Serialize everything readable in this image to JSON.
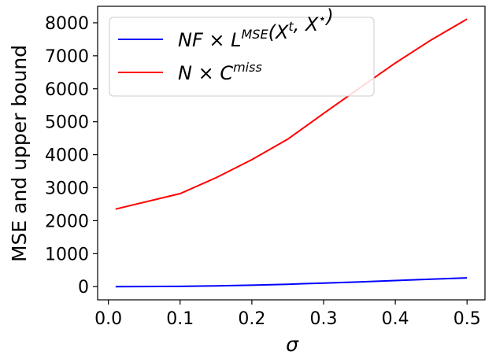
{
  "chart_data": {
    "type": "line",
    "title": "",
    "xlabel": "σ",
    "ylabel": "MSE and upper bound",
    "xlim": [
      -0.015,
      0.525
    ],
    "ylim": [
      -400,
      8500
    ],
    "xticks": [
      0.0,
      0.1,
      0.2,
      0.3,
      0.4,
      0.5
    ],
    "xtick_labels": [
      "0.0",
      "0.1",
      "0.2",
      "0.3",
      "0.4",
      "0.5"
    ],
    "yticks": [
      0,
      1000,
      2000,
      3000,
      4000,
      5000,
      6000,
      7000,
      8000
    ],
    "ytick_labels": [
      "0",
      "1000",
      "2000",
      "3000",
      "4000",
      "5000",
      "6000",
      "7000",
      "8000"
    ],
    "grid": false,
    "legend_position": "top-left",
    "series": [
      {
        "name": "NF × L^MSE(X^t, X^⋆)",
        "legend": {
          "base": "NF × L",
          "sup": "MSE",
          "rest": "(X",
          "sup2": "t",
          "rest2": ", X",
          "sup3": "⋆",
          "tail": ")"
        },
        "color": "#0000ff",
        "x": [
          0.01,
          0.1,
          0.15,
          0.2,
          0.25,
          0.3,
          0.35,
          0.4,
          0.45,
          0.5
        ],
        "y": [
          2,
          9,
          24,
          45,
          72,
          108,
          145,
          185,
          225,
          265
        ]
      },
      {
        "name": "N × C^miss",
        "legend": {
          "base": "N × C",
          "sup": "miss",
          "rest": "",
          "sup2": "",
          "rest2": "",
          "sup3": "",
          "tail": ""
        },
        "color": "#ff0000",
        "x": [
          0.01,
          0.1,
          0.15,
          0.2,
          0.25,
          0.3,
          0.35,
          0.4,
          0.45,
          0.5
        ],
        "y": [
          2350,
          2820,
          3300,
          3850,
          4470,
          5250,
          6020,
          6780,
          7480,
          8110
        ]
      }
    ]
  }
}
